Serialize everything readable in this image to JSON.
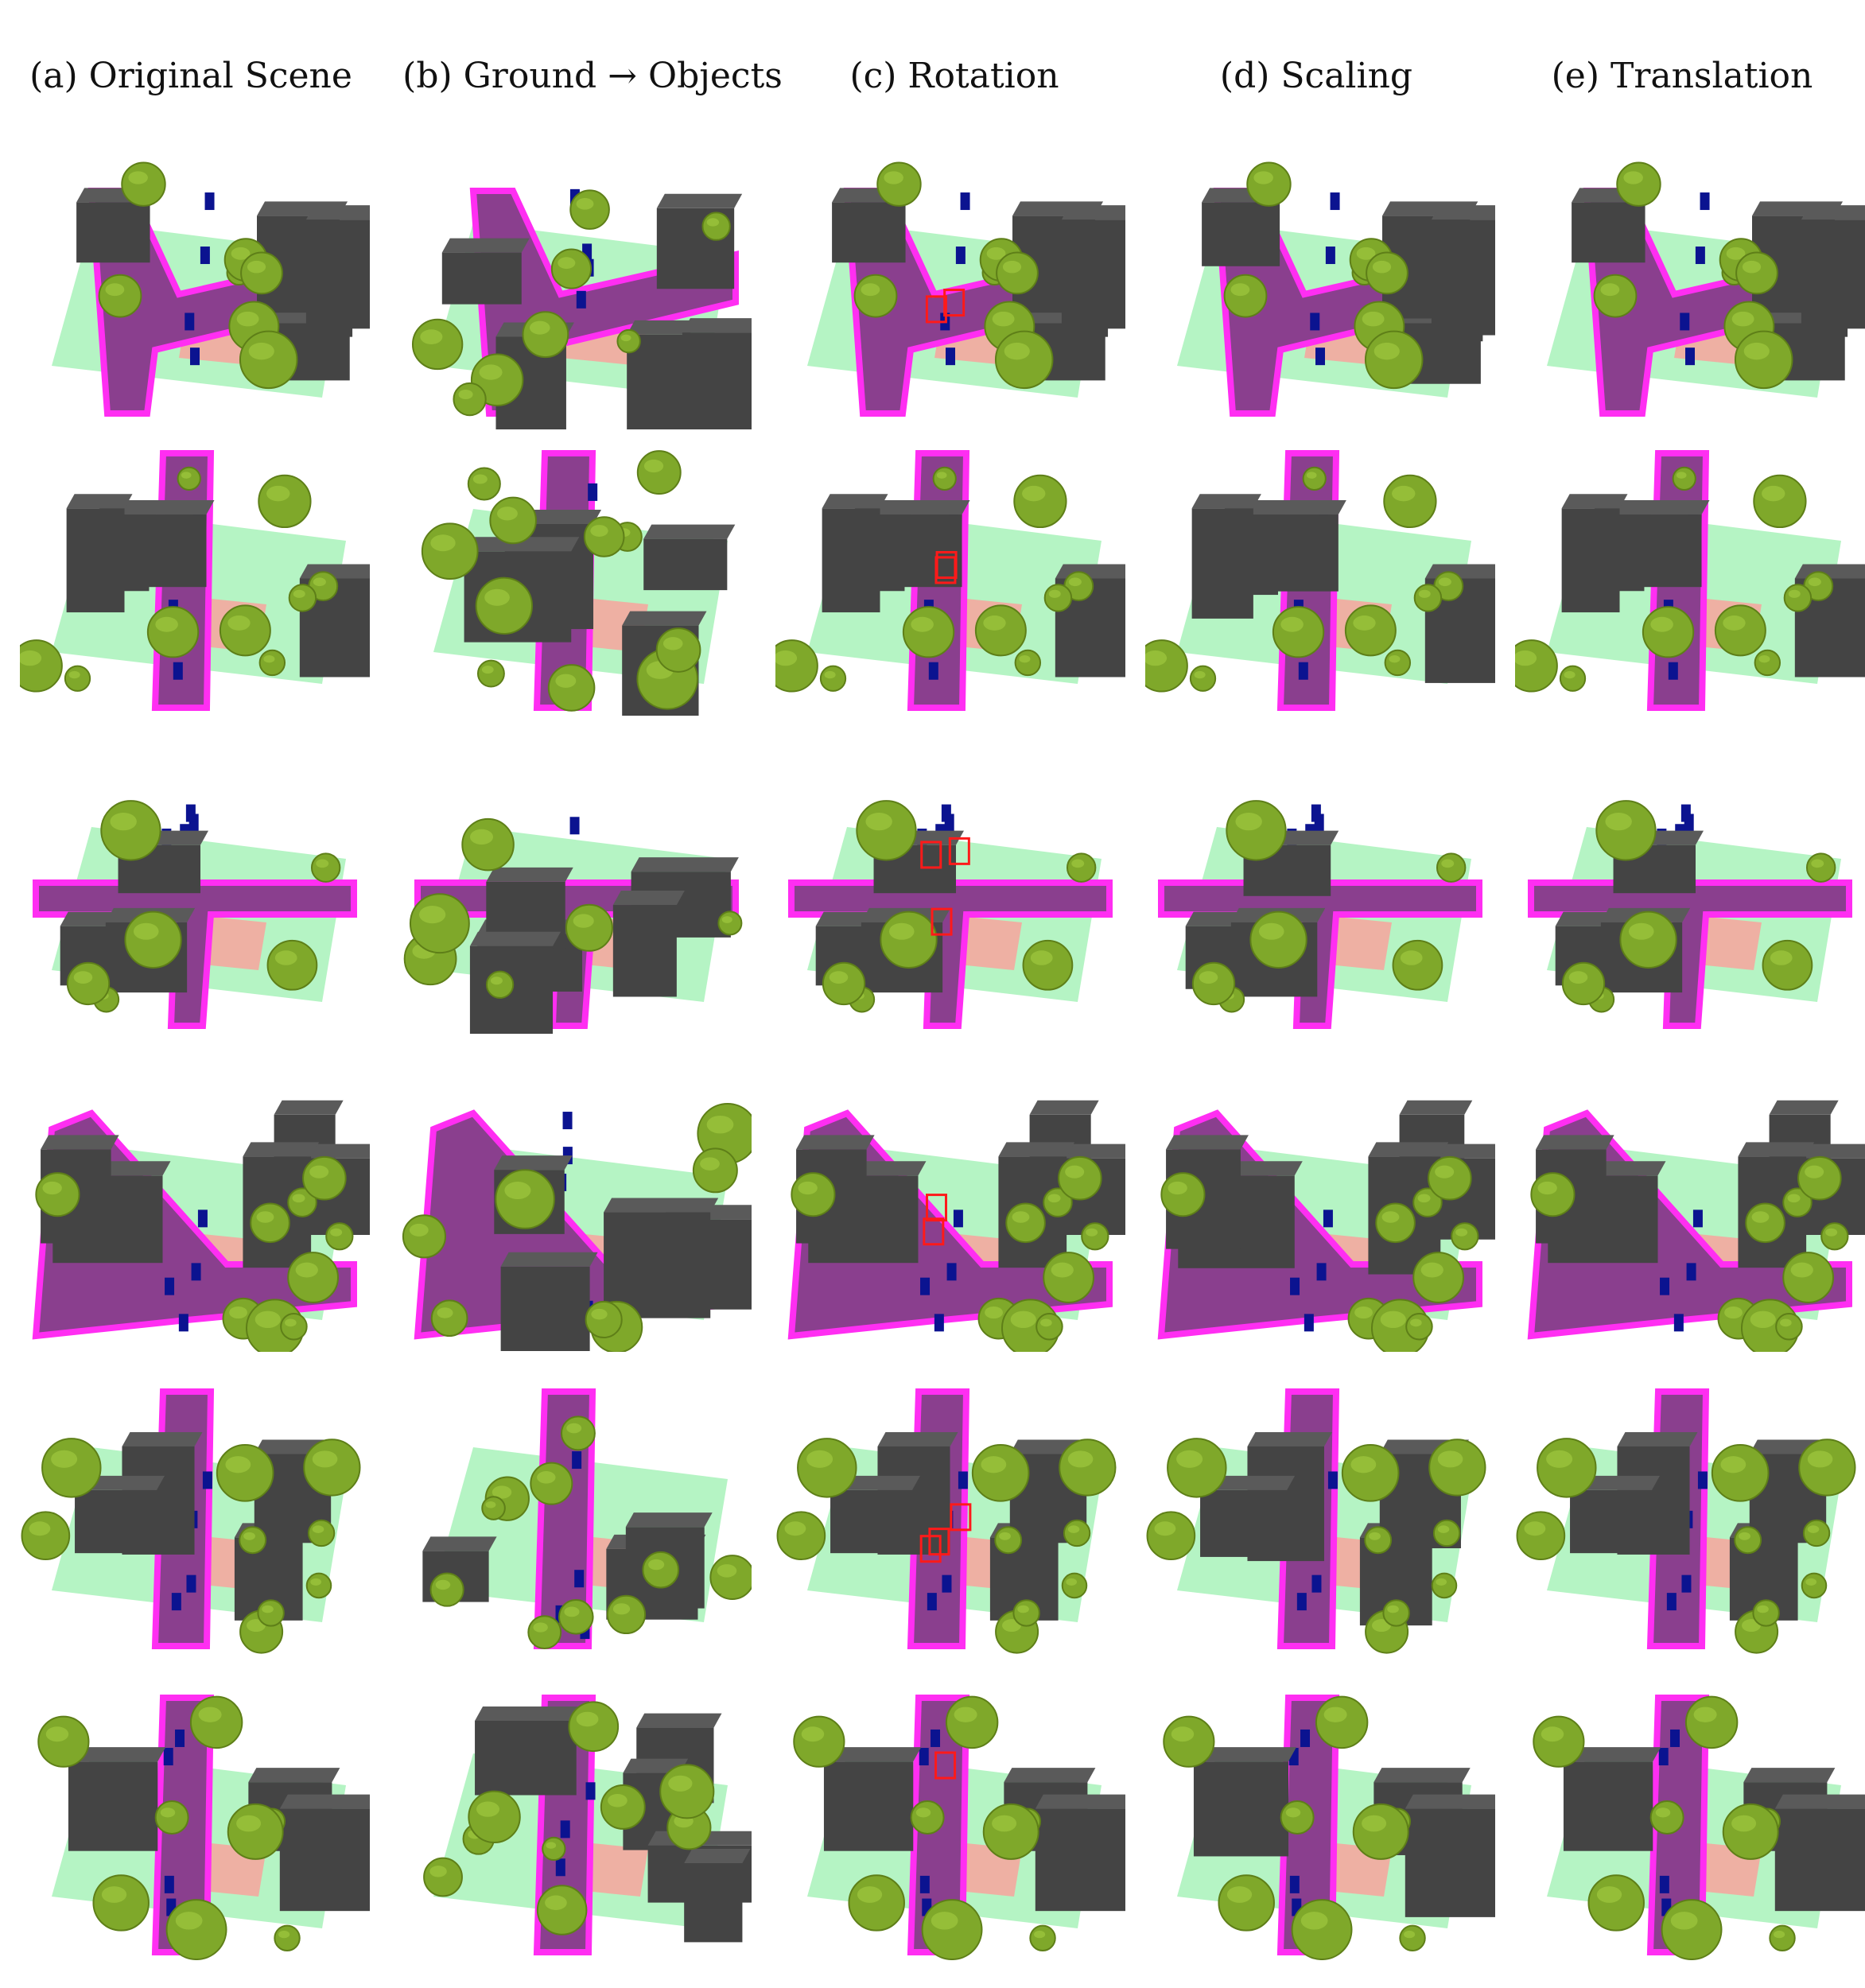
{
  "column_headers": [
    "(a) Original Scene",
    "(b) Ground → Objects",
    "(c) Rotation",
    "(d) Scaling",
    "(e) Translation"
  ],
  "colors": {
    "building": "#444444",
    "building_top": "#5a5a5a",
    "tree": "#7fa82a",
    "tree_dark": "#5e7f18",
    "road": "#8a3f8e",
    "road_edge": "#ff2ef2",
    "grass": "#9cf0b0",
    "sidewalk": "#f4a8a0",
    "car": "#0b1390",
    "highlight_box": "#ff1a1a"
  },
  "icons": {
    "scene_render": "3d-urban-scene-render",
    "highlight": "red-bounding-box"
  }
}
